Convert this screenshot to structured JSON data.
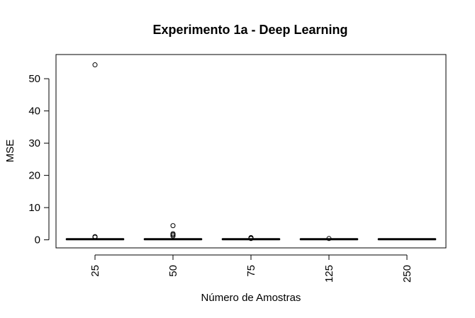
{
  "chart_data": {
    "type": "boxplot",
    "title": "Experimento 1a - Deep Learning",
    "xlabel": "Número de Amostras",
    "ylabel": "MSE",
    "categories": [
      "25",
      "50",
      "75",
      "125",
      "250"
    ],
    "ylim": [
      -2.5,
      57.5
    ],
    "yticks": [
      "0",
      "10",
      "20",
      "30",
      "40",
      "50"
    ],
    "boxes": [
      {
        "category": "25",
        "median": 0.2,
        "q1": 0.1,
        "q3": 0.3,
        "whisker_low": 0.05,
        "whisker_high": 0.5,
        "outliers": [
          54.3,
          1.0,
          0.8
        ]
      },
      {
        "category": "50",
        "median": 0.2,
        "q1": 0.1,
        "q3": 0.3,
        "whisker_low": 0.05,
        "whisker_high": 0.5,
        "outliers": [
          4.4,
          1.9,
          1.6,
          1.2
        ]
      },
      {
        "category": "75",
        "median": 0.2,
        "q1": 0.1,
        "q3": 0.3,
        "whisker_low": 0.05,
        "whisker_high": 0.4,
        "outliers": [
          0.7,
          0.6,
          0.5,
          0.4
        ]
      },
      {
        "category": "125",
        "median": 0.2,
        "q1": 0.1,
        "q3": 0.3,
        "whisker_low": 0.05,
        "whisker_high": 0.35,
        "outliers": [
          0.4
        ]
      },
      {
        "category": "250",
        "median": 0.2,
        "q1": 0.1,
        "q3": 0.3,
        "whisker_low": 0.05,
        "whisker_high": 0.35,
        "outliers": []
      }
    ],
    "colors": {
      "box": "#000000",
      "background": "#ffffff"
    }
  }
}
